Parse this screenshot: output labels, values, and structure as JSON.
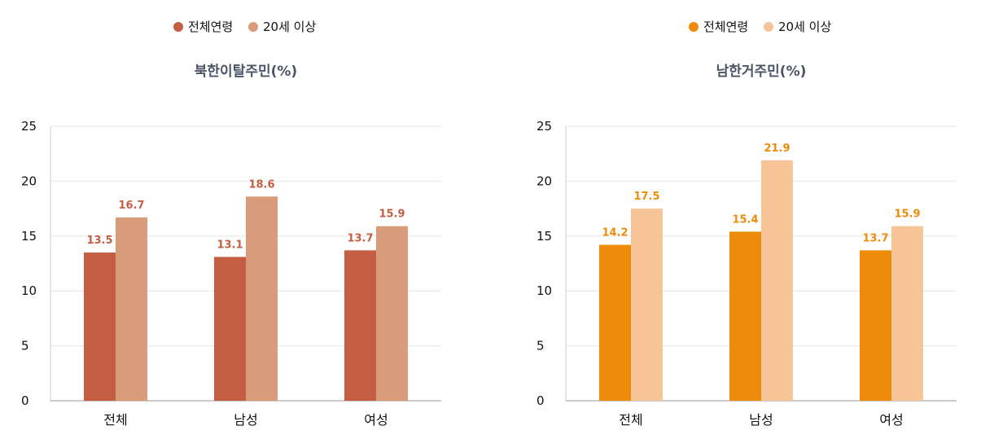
{
  "chart_data": [
    {
      "type": "bar",
      "title": "북한이탈주민(%)",
      "categories": [
        "전체",
        "남성",
        "여성"
      ],
      "series": [
        {
          "name": "전체연령",
          "values": [
            13.5,
            13.1,
            13.7
          ],
          "color": "#c45e42"
        },
        {
          "name": "20세 이상",
          "values": [
            16.7,
            18.6,
            15.9
          ],
          "color": "#d99b79"
        }
      ],
      "label_color": "#c45e42",
      "ylim": [
        0,
        25
      ],
      "yticks": [
        0,
        5,
        10,
        15,
        20,
        25
      ],
      "grid": true,
      "legend": "top-center"
    },
    {
      "type": "bar",
      "title": "남한거주민(%)",
      "categories": [
        "전체",
        "남성",
        "여성"
      ],
      "series": [
        {
          "name": "전체연령",
          "values": [
            14.2,
            15.4,
            13.7
          ],
          "color": "#ee8b0b"
        },
        {
          "name": "20세 이상",
          "values": [
            17.5,
            21.9,
            15.9
          ],
          "color": "#f7c498"
        }
      ],
      "label_color": "#ee8b0b",
      "ylim": [
        0,
        25
      ],
      "yticks": [
        0,
        5,
        10,
        15,
        20,
        25
      ],
      "grid": true,
      "legend": "top-center"
    }
  ]
}
